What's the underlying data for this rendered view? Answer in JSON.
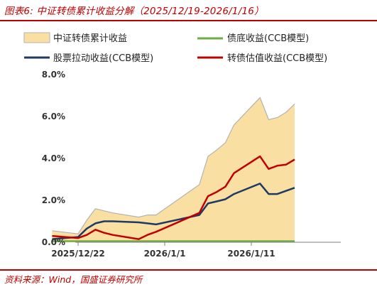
{
  "figure": {
    "title": "图表6:  中证转债累计收益分解（2025/12/19-2026/1/16）",
    "source": "资料来源：Wind，国盛证券研究所"
  },
  "colors": {
    "area_fill": "#f9e0a2",
    "area_edge": "#b3b3b3",
    "bond_floor": "#70ad47",
    "stock_pull": "#1f3864",
    "valuation": "#c00000",
    "accent": "#c00000"
  },
  "chart_data": {
    "type": "area",
    "x": [
      "2025/12/19",
      "2025/12/22",
      "2025/12/23",
      "2025/12/24",
      "2025/12/25",
      "2025/12/26",
      "2025/12/29",
      "2025/12/30",
      "2025/12/31",
      "2026/1/5",
      "2026/1/6",
      "2026/1/7",
      "2026/1/8",
      "2026/1/9",
      "2026/1/12",
      "2026/1/13",
      "2026/1/14",
      "2026/1/15",
      "2026/1/16"
    ],
    "xticks": [
      "2025/12/22",
      "2026/1/1",
      "2026/1/11"
    ],
    "ylim": [
      0,
      8.0
    ],
    "yticks": [
      0,
      2,
      4,
      6,
      8
    ],
    "ytick_labels": [
      "0.0%",
      "2.0%",
      "4.0%",
      "6.0%",
      "8.0%"
    ],
    "series": [
      {
        "name": "中证转债累计收益",
        "type": "area",
        "color_key": "area_fill",
        "values": [
          0.55,
          0.4,
          1.05,
          1.6,
          1.5,
          1.4,
          1.2,
          1.3,
          1.3,
          2.75,
          4.1,
          4.4,
          4.75,
          5.6,
          6.9,
          5.85,
          5.95,
          6.2,
          6.6
        ]
      },
      {
        "name": "债底收益(CCB模型)",
        "type": "line",
        "color_key": "bond_floor",
        "values": [
          0.05,
          0.05,
          0.05,
          0.05,
          0.05,
          0.05,
          0.05,
          0.05,
          0.05,
          0.05,
          0.05,
          0.05,
          0.05,
          0.05,
          0.05,
          0.05,
          0.05,
          0.05,
          0.05
        ]
      },
      {
        "name": "股票拉动收益(CCB模型)",
        "type": "line",
        "color_key": "stock_pull",
        "values": [
          0.15,
          0.25,
          0.65,
          0.9,
          1.0,
          1.0,
          0.95,
          0.9,
          0.85,
          1.3,
          1.85,
          1.95,
          2.05,
          2.3,
          2.8,
          2.3,
          2.3,
          2.45,
          2.6
        ]
      },
      {
        "name": "转债估值收益(CCB模型)",
        "type": "line",
        "color_key": "valuation",
        "values": [
          0.3,
          0.2,
          0.35,
          0.6,
          0.45,
          0.35,
          0.15,
          0.35,
          0.5,
          1.4,
          2.2,
          2.4,
          2.65,
          3.3,
          4.1,
          3.5,
          3.65,
          3.7,
          3.95
        ]
      }
    ],
    "grid": false,
    "legend": "top"
  }
}
